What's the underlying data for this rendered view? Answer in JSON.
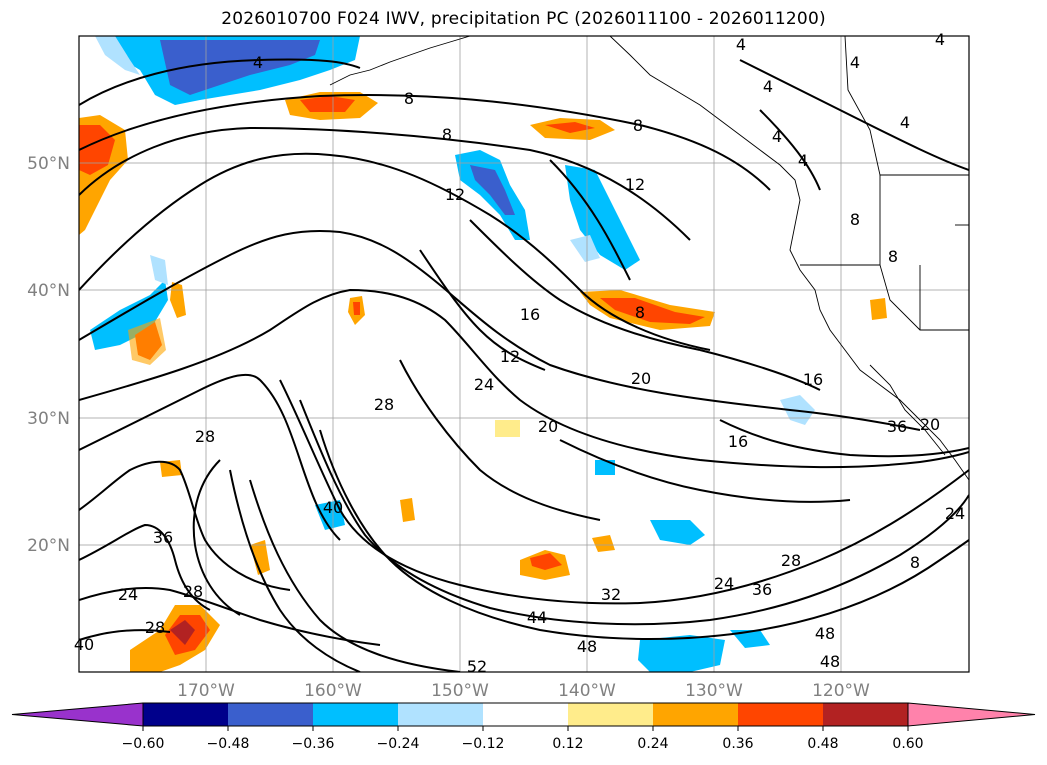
{
  "title": "2026010700 F024 IWV, precipitation PC (2026011100 - 2026011200)",
  "lat_labels": [
    "50°N",
    "40°N",
    "30°N",
    "20°N"
  ],
  "lon_labels": [
    "170°W",
    "160°W",
    "150°W",
    "140°W",
    "130°W",
    "120°W"
  ],
  "colorbar": {
    "colors": [
      "#9932cc",
      "#00008b",
      "#3a5fcd",
      "#00bfff",
      "#b0e2ff",
      "#ffffff",
      "#ffec8b",
      "#ffa500",
      "#ff4500",
      "#b22222",
      "#ff82ab"
    ],
    "tick_labels": [
      "−0.60",
      "−0.48",
      "−0.36",
      "−0.24",
      "−0.12",
      "0.12",
      "0.24",
      "0.36",
      "0.48",
      "0.60"
    ]
  },
  "contour_labels": [
    "4",
    "4",
    "4",
    "4",
    "4",
    "4",
    "4",
    "8",
    "8",
    "8",
    "8",
    "8",
    "8",
    "12",
    "12",
    "12",
    "16",
    "16",
    "16",
    "20",
    "20",
    "20",
    "24",
    "24",
    "24",
    "24",
    "28",
    "28",
    "28",
    "28",
    "28",
    "32",
    "36",
    "36",
    "40",
    "40",
    "44",
    "48",
    "48",
    "48",
    "52",
    "36",
    "4",
    "8"
  ],
  "colors_meaning": {
    "contour": "#000000",
    "grid": "#a0a0a0"
  }
}
